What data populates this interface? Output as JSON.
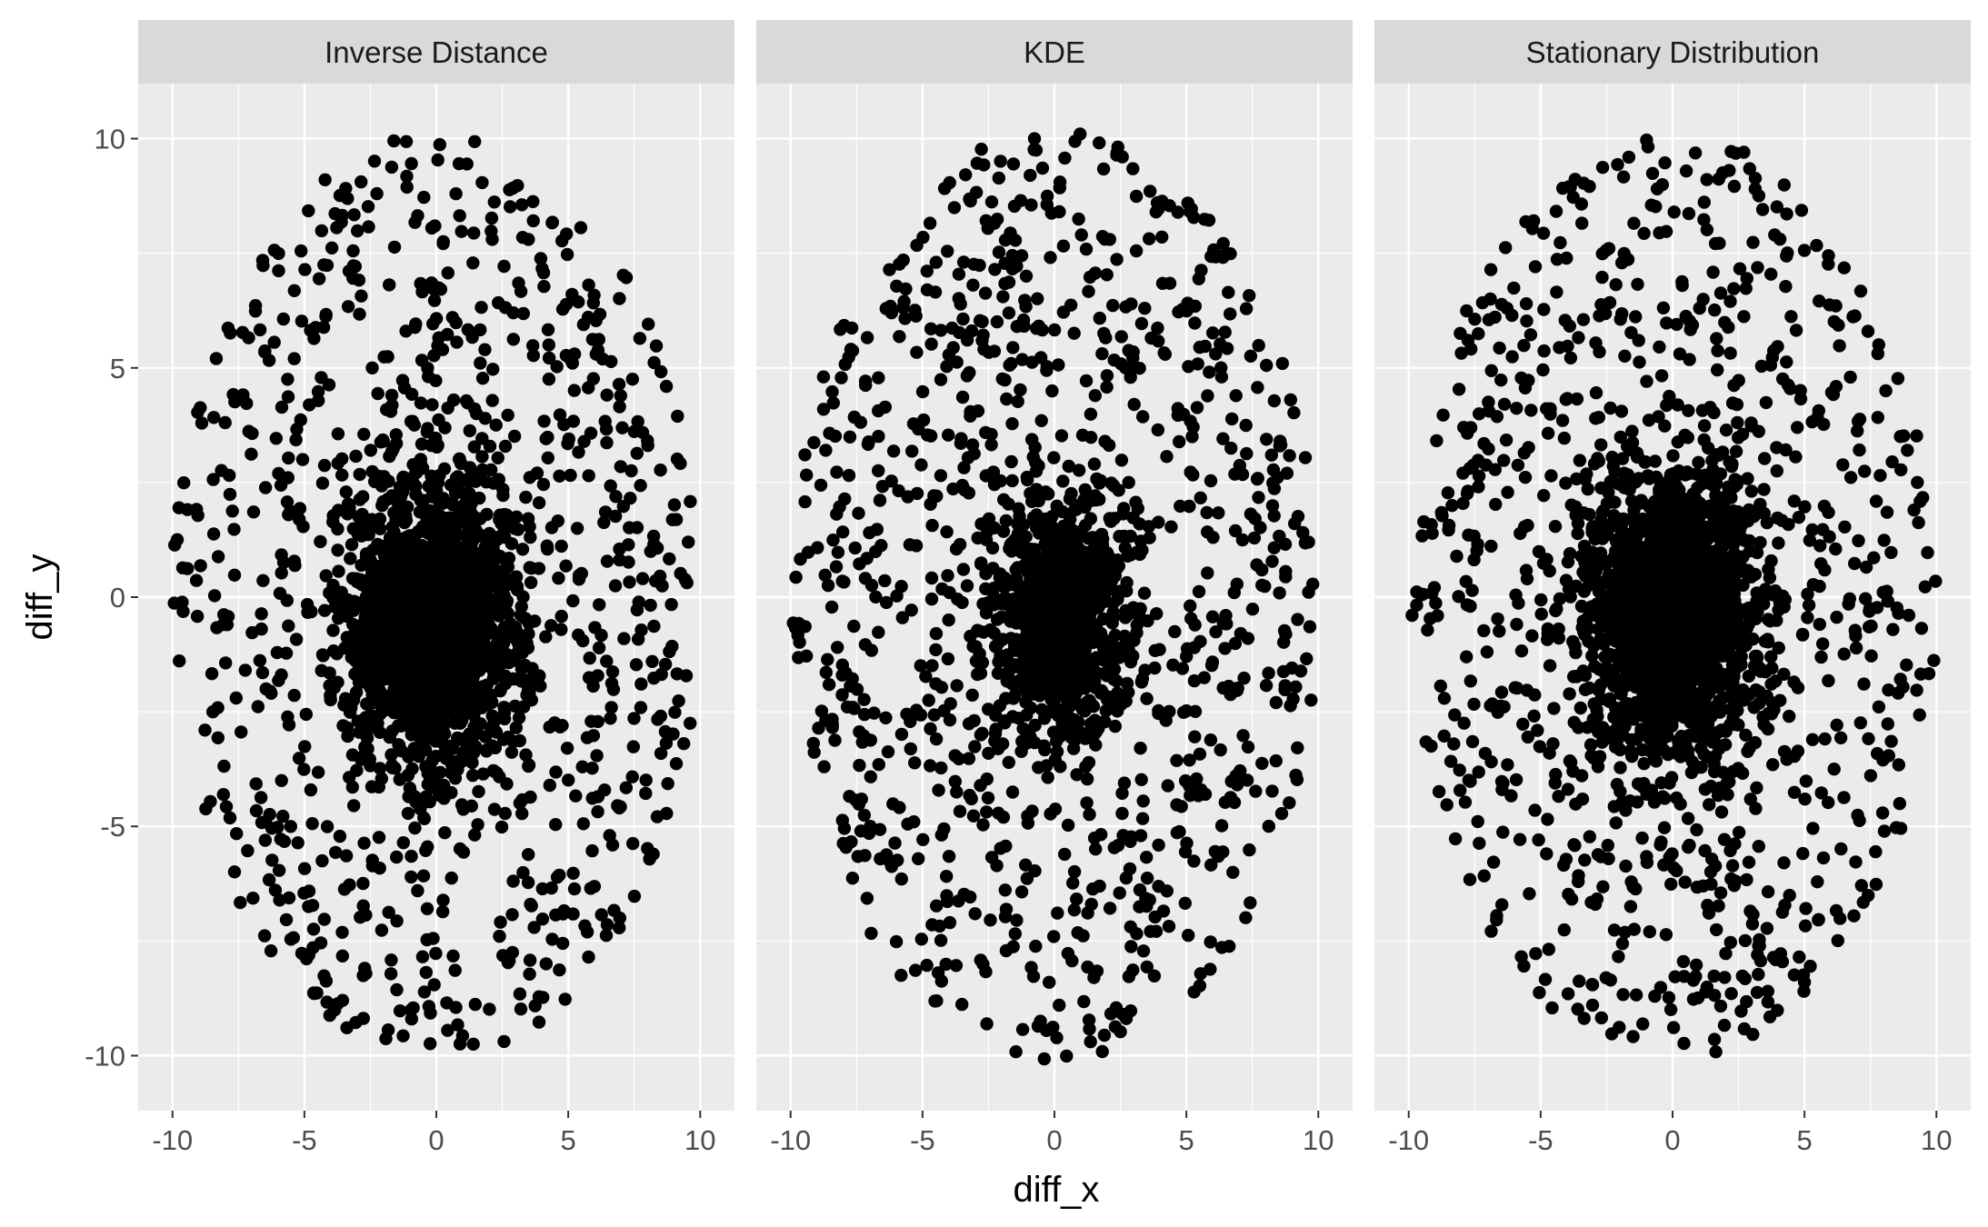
{
  "chart_data": {
    "type": "scatter",
    "xlabel": "diff_x",
    "ylabel": "diff_y",
    "xlim": [
      -11.3,
      11.3
    ],
    "ylim": [
      -11.2,
      11.2
    ],
    "x_ticks": [
      -10,
      -5,
      0,
      5,
      10
    ],
    "y_ticks": [
      -10,
      -5,
      0,
      5,
      10
    ],
    "x_tick_labels": [
      "-10",
      "-5",
      "0",
      "5",
      "10"
    ],
    "y_tick_labels": [
      "-10",
      "-5",
      "0",
      "5",
      "10"
    ],
    "grid": true,
    "legend": "none",
    "colors": {
      "panel_bg": "#ebebeb",
      "strip_bg": "#d9d9d9",
      "grid": "#ffffff",
      "points": "#000000"
    },
    "panels": [
      {
        "label": "Inverse Distance",
        "distribution": {
          "outer_ellipse": {
            "x_semi_axis": 10,
            "y_semi_axis": 10.1
          },
          "core": {
            "x_center": -0.2,
            "y_center": -0.5,
            "x_semi_axis": 4.3,
            "y_semi_axis": 4.4
          },
          "n_core": 2600,
          "n_outer": 820
        }
      },
      {
        "label": "KDE",
        "distribution": {
          "outer_ellipse": {
            "x_semi_axis": 10,
            "y_semi_axis": 10.2
          },
          "core": {
            "x_center": 0.1,
            "y_center": -0.4,
            "x_semi_axis": 3.6,
            "y_semi_axis": 3.6
          },
          "n_core": 1500,
          "n_outer": 900
        }
      },
      {
        "label": "Stationary Distribution",
        "distribution": {
          "outer_ellipse": {
            "x_semi_axis": 10,
            "y_semi_axis": 10.1
          },
          "core": {
            "x_center": 0.0,
            "y_center": -0.3,
            "x_semi_axis": 4.5,
            "y_semi_axis": 4.5
          },
          "n_core": 2600,
          "n_outer": 820
        }
      }
    ]
  }
}
